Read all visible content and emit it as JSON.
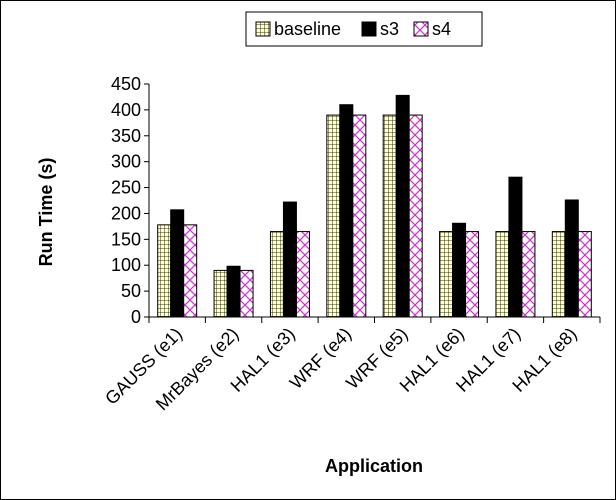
{
  "chart_data": {
    "type": "bar",
    "categories": [
      "GAUSS (e1)",
      "MrBayes (e2)",
      "HAL1 (e3)",
      "WRF (e4)",
      "WRF (e5)",
      "HAL1 (e6)",
      "HAL1 (e7)",
      "HAL1 (e8)"
    ],
    "series": [
      {
        "name": "baseline",
        "values": [
          178,
          90,
          165,
          390,
          390,
          165,
          165,
          165
        ],
        "color": "#ffffcc",
        "pattern": "grid"
      },
      {
        "name": "s3",
        "values": [
          207,
          98,
          222,
          410,
          428,
          181,
          270,
          226
        ],
        "color": "#000000",
        "pattern": "solid"
      },
      {
        "name": "s4",
        "values": [
          178,
          90,
          165,
          390,
          390,
          165,
          165,
          165
        ],
        "color": "#ffffff",
        "pattern": "crosshatch-magenta"
      }
    ],
    "xlabel": "Application",
    "ylabel": "Run Time (s)",
    "ylim": [
      0,
      450
    ],
    "yticks": [
      0,
      50,
      100,
      150,
      200,
      250,
      300,
      350,
      400,
      450
    ],
    "grid": false,
    "legend": "top"
  }
}
